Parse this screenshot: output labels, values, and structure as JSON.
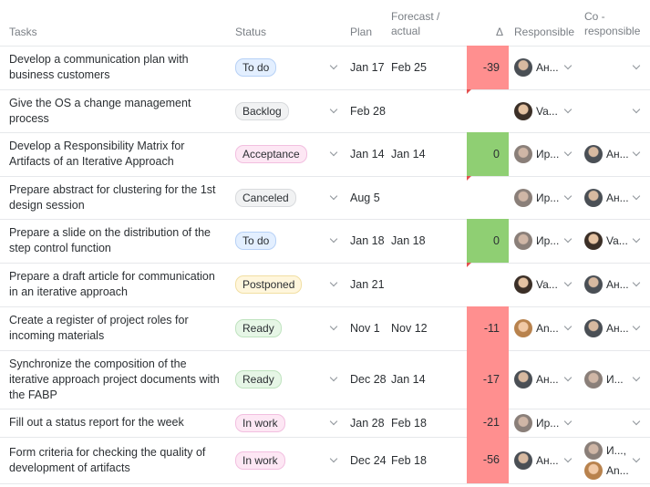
{
  "headers": {
    "tasks": "Tasks",
    "status": "Status",
    "plan": "Plan",
    "forecast": "Forecast /\nactual",
    "delta": "Δ",
    "responsible": "Responsible",
    "co_responsible": "Co -\nresponsible"
  },
  "status_colors": {
    "To do": {
      "bg": "#e3efff",
      "border": "#b7d1f6"
    },
    "Backlog": {
      "bg": "#f1f2f3",
      "border": "#d8dadd"
    },
    "Acceptance": {
      "bg": "#fde7f4",
      "border": "#f2bfe0"
    },
    "Canceled": {
      "bg": "#f1f2f3",
      "border": "#d8dadd"
    },
    "Postponed": {
      "bg": "#fff6dc",
      "border": "#f1dfa3"
    },
    "Ready": {
      "bg": "#e6f6e6",
      "border": "#bfe3bf"
    },
    "In work": {
      "bg": "#fde7f4",
      "border": "#f2bfe0"
    }
  },
  "rows": [
    {
      "task": "Develop a communication plan with business customers",
      "status": "To do",
      "plan": "Jan 17",
      "forecast": "Feb 25",
      "delta": "-39",
      "delta_tone": "negative",
      "flag": false,
      "responsible": [
        {
          "name": "Ан...",
          "avatar_icon": "person-avatar-icon-1"
        }
      ],
      "co_responsible": []
    },
    {
      "task": "Give the OS a change management process",
      "status": "Backlog",
      "plan": "Feb 28",
      "forecast": "",
      "delta": "",
      "delta_tone": "none",
      "flag": true,
      "responsible": [
        {
          "name": "Va...",
          "avatar_icon": "person-avatar-icon-2"
        }
      ],
      "co_responsible": []
    },
    {
      "task": "Develop a Responsibility Matrix for Artifacts of an Iterative Approach",
      "status": "Acceptance",
      "plan": "Jan 14",
      "forecast": "Jan 14",
      "delta": "0",
      "delta_tone": "positive",
      "flag": false,
      "responsible": [
        {
          "name": "Ир...",
          "avatar_icon": "person-avatar-icon-3"
        }
      ],
      "co_responsible": [
        {
          "name": "Ан...",
          "avatar_icon": "person-avatar-icon-1"
        }
      ]
    },
    {
      "task": "Prepare abstract for clustering for the 1st design session",
      "status": "Canceled",
      "plan": "Aug 5",
      "forecast": "",
      "delta": "",
      "delta_tone": "none",
      "flag": true,
      "responsible": [
        {
          "name": "Ир...",
          "avatar_icon": "person-avatar-icon-3"
        }
      ],
      "co_responsible": [
        {
          "name": "Ан...",
          "avatar_icon": "person-avatar-icon-1"
        }
      ]
    },
    {
      "task": "Prepare a slide on the distribution of the step control function",
      "status": "To do",
      "plan": "Jan 18",
      "forecast": "Jan 18",
      "delta": "0",
      "delta_tone": "positive",
      "flag": false,
      "responsible": [
        {
          "name": "Ир...",
          "avatar_icon": "person-avatar-icon-3"
        }
      ],
      "co_responsible": [
        {
          "name": "Va...",
          "avatar_icon": "person-avatar-icon-2"
        }
      ]
    },
    {
      "task": "Prepare a draft article for communication in an iterative approach",
      "status": "Postponed",
      "plan": "Jan 21",
      "forecast": "",
      "delta": "",
      "delta_tone": "none",
      "flag": true,
      "responsible": [
        {
          "name": "Va...",
          "avatar_icon": "person-avatar-icon-2"
        }
      ],
      "co_responsible": [
        {
          "name": "Ан...",
          "avatar_icon": "person-avatar-icon-1"
        }
      ]
    },
    {
      "task": "Create a register of project roles for incoming materials",
      "status": "Ready",
      "plan": "Nov 1",
      "forecast": "Nov 12",
      "delta": "-11",
      "delta_tone": "negative",
      "flag": false,
      "responsible": [
        {
          "name": "An...",
          "avatar_icon": "person-avatar-icon-4"
        }
      ],
      "co_responsible": [
        {
          "name": "Ан...",
          "avatar_icon": "person-avatar-icon-1"
        }
      ]
    },
    {
      "task": "Synchronize the composition of the iterative approach project documents with the FABP",
      "status": "Ready",
      "plan": "Dec 28",
      "forecast": "Jan 14",
      "delta": "-17",
      "delta_tone": "negative",
      "flag": false,
      "responsible": [
        {
          "name": "Ан...",
          "avatar_icon": "person-avatar-icon-1"
        }
      ],
      "co_responsible": [
        {
          "name": "И...",
          "avatar_icon": "person-avatar-icon-3"
        }
      ]
    },
    {
      "task": "Fill out a status report for the week",
      "status": "In work",
      "plan": "Jan 28",
      "forecast": "Feb 18",
      "delta": "-21",
      "delta_tone": "negative",
      "flag": false,
      "responsible": [
        {
          "name": "Ир...",
          "avatar_icon": "person-avatar-icon-3"
        }
      ],
      "co_responsible": []
    },
    {
      "task": "Form criteria for checking the quality of development of artifacts",
      "status": "In work",
      "plan": "Dec 24",
      "forecast": "Feb 18",
      "delta": "-56",
      "delta_tone": "negative",
      "flag": false,
      "responsible": [
        {
          "name": "Ан...",
          "avatar_icon": "person-avatar-icon-1"
        }
      ],
      "co_responsible": [
        {
          "name": "И...,",
          "avatar_icon": "person-avatar-icon-3"
        },
        {
          "name": "An...",
          "avatar_icon": "person-avatar-icon-4"
        }
      ]
    }
  ]
}
